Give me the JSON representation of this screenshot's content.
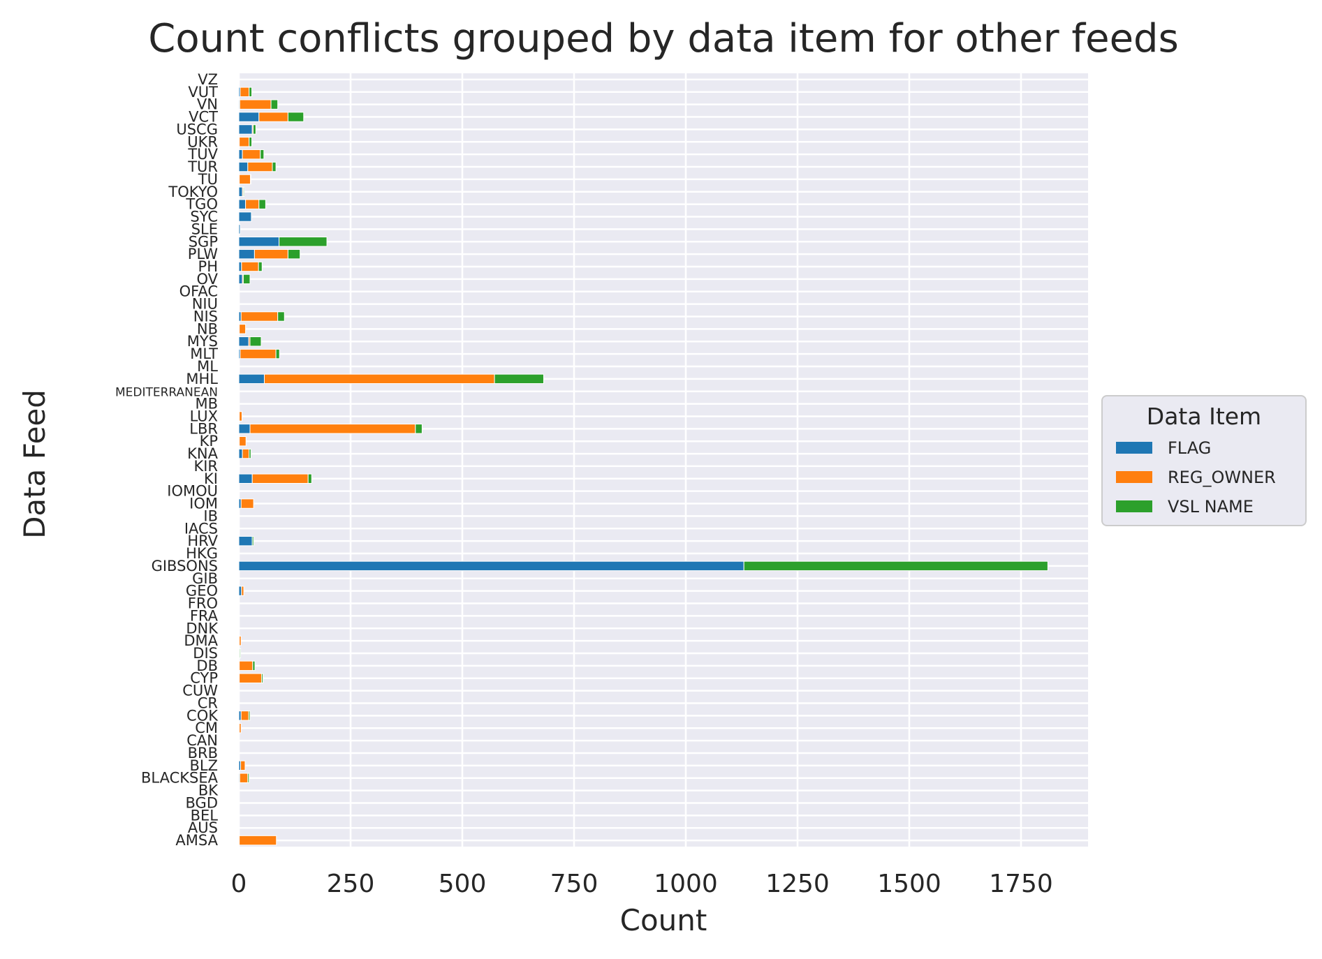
{
  "colors": {
    "FLAG": "#1f77b4",
    "REG_OWNER": "#ff7f0e",
    "VSL NAME": "#2ca02c",
    "plot_background": "#eaeaf2",
    "grid": "#ffffff"
  },
  "chart_data": {
    "type": "bar",
    "orientation": "horizontal",
    "stacked": true,
    "title": "Count conflicts grouped by data item for other feeds",
    "xlabel": "Count",
    "ylabel": "Data Feed",
    "xlim": [
      0,
      1900
    ],
    "xticks": [
      0,
      250,
      500,
      750,
      1000,
      1250,
      1500,
      1750
    ],
    "grid": true,
    "legend": {
      "title": "Data Item",
      "placement": "right"
    },
    "categories": [
      "VZ",
      "VUT",
      "VN",
      "VCT",
      "USCG",
      "UKR",
      "TUV",
      "TUR",
      "TU",
      "TOKYO",
      "TGO",
      "SYC",
      "SLE",
      "SGP",
      "PLW",
      "PH",
      "OV",
      "OFAC",
      "NIU",
      "NIS",
      "NB",
      "MYS",
      "MLT",
      "ML",
      "MHL",
      "MEDITERRANEAN",
      "MB",
      "LUX",
      "LBR",
      "KP",
      "KNA",
      "KIR",
      "KI",
      "IOMOU",
      "IOM",
      "IB",
      "IACS",
      "HRV",
      "HKG",
      "GIBSONS",
      "GIB",
      "GEO",
      "FRO",
      "FRA",
      "DNK",
      "DMA",
      "DIS",
      "DB",
      "CYP",
      "CUW",
      "CR",
      "COK",
      "CM",
      "CAN",
      "BRB",
      "BLZ",
      "BLACKSEA",
      "BK",
      "BGD",
      "BEL",
      "AUS",
      "AMSA"
    ],
    "series": [
      {
        "name": "FLAG",
        "values": [
          0,
          3,
          2,
          45,
          30,
          1,
          8,
          20,
          1,
          8,
          15,
          28,
          3,
          90,
          35,
          6,
          8,
          0,
          0,
          5,
          1,
          22,
          3,
          1,
          57,
          0,
          0,
          1,
          25,
          1,
          8,
          0,
          30,
          0,
          5,
          0,
          0,
          30,
          0,
          1130,
          0,
          6,
          0,
          0,
          0,
          1,
          1,
          1,
          1,
          0,
          0,
          5,
          1,
          0,
          0,
          4,
          2,
          0,
          0,
          0,
          0,
          1
        ]
      },
      {
        "name": "REG_OWNER",
        "values": [
          0,
          20,
          70,
          65,
          2,
          22,
          40,
          55,
          25,
          2,
          30,
          0,
          0,
          0,
          75,
          38,
          2,
          0,
          0,
          82,
          14,
          3,
          80,
          0,
          515,
          0,
          0,
          6,
          370,
          15,
          15,
          0,
          125,
          0,
          28,
          0,
          0,
          0,
          0,
          0,
          0,
          5,
          0,
          0,
          0,
          4,
          1,
          30,
          50,
          0,
          0,
          17,
          4,
          0,
          0,
          10,
          18,
          0,
          0,
          0,
          0,
          83
        ]
      },
      {
        "name": "VSL NAME",
        "values": [
          0,
          6,
          15,
          35,
          6,
          6,
          8,
          8,
          1,
          2,
          15,
          0,
          0,
          107,
          27,
          8,
          15,
          0,
          0,
          15,
          0,
          25,
          8,
          0,
          110,
          0,
          0,
          0,
          15,
          0,
          4,
          0,
          8,
          0,
          0,
          0,
          0,
          3,
          0,
          680,
          0,
          0,
          0,
          0,
          0,
          0,
          2,
          5,
          3,
          0,
          0,
          3,
          0,
          0,
          0,
          0,
          3,
          0,
          0,
          0,
          0,
          0
        ]
      }
    ]
  }
}
